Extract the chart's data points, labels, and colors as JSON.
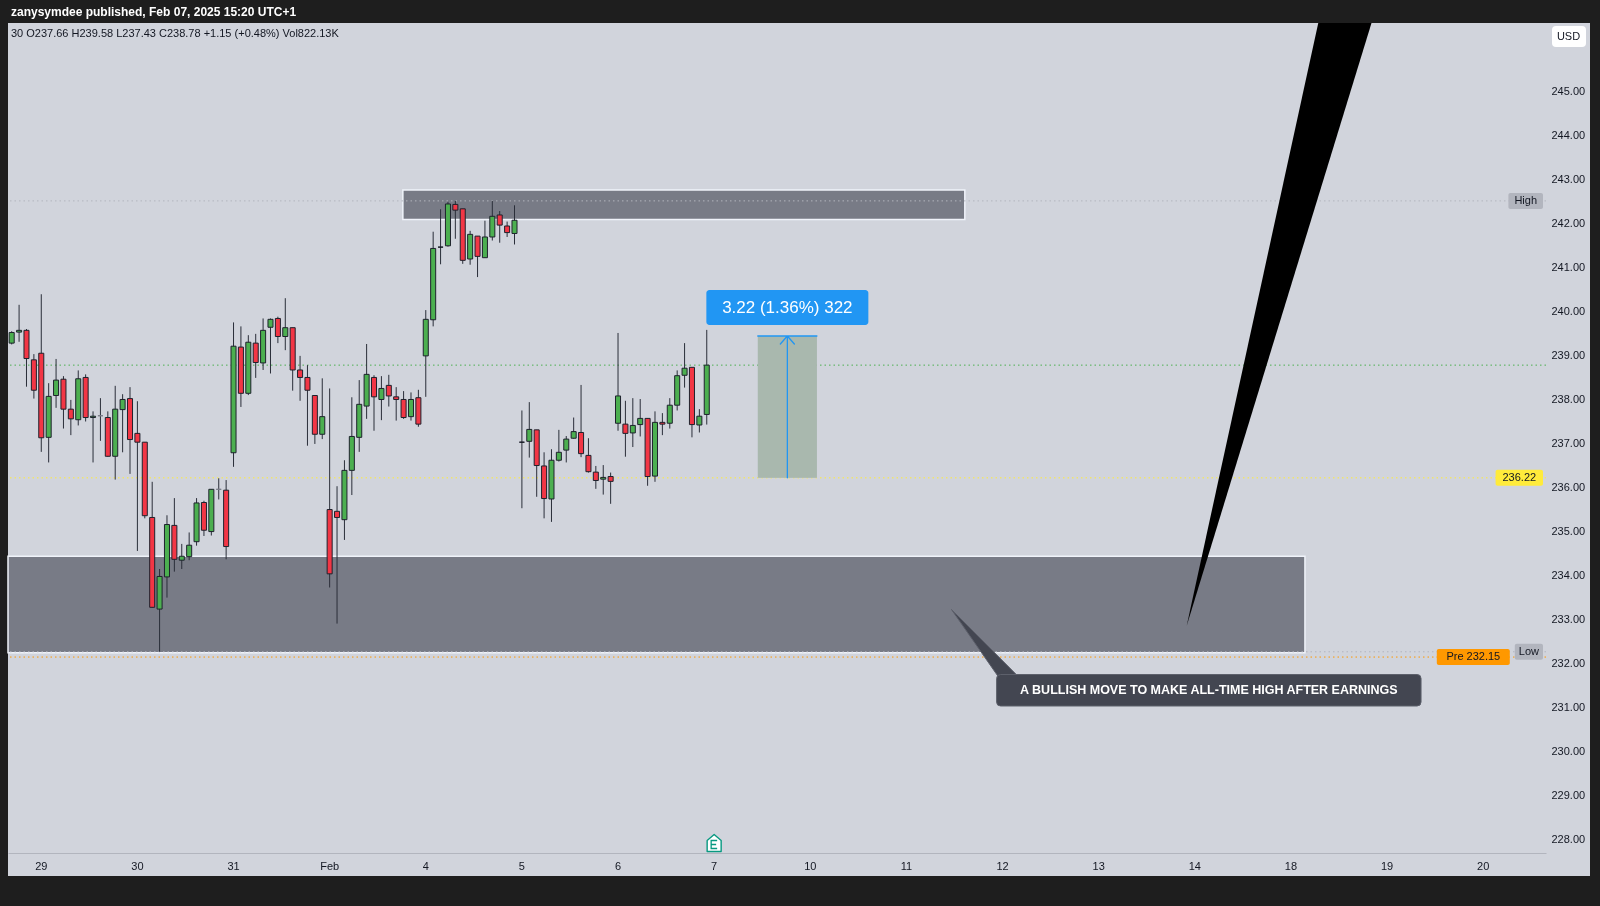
{
  "chart_data": {
    "type": "candlestick",
    "title": "zanysymdee published, Feb 07, 2025 15:20 UTC+1",
    "subtitle": "30 O237.66 H239.58 L237.43 C238.78 +1.15 (+0.48%) Vol822.13K",
    "ylabel": "USD",
    "categories": [
      null,
      null,
      null,
      null,
      "29",
      null,
      null,
      null,
      null,
      null,
      null,
      null,
      null,
      null,
      null,
      null,
      null,
      "30",
      null,
      null,
      null,
      null,
      null,
      null,
      null,
      null,
      null,
      null,
      null,
      null,
      "31",
      null,
      null,
      null,
      null,
      null,
      null,
      null,
      null,
      null,
      null,
      null,
      null,
      "Feb",
      null,
      null,
      null,
      null,
      null,
      null,
      null,
      null,
      null,
      null,
      null,
      null,
      "4",
      null,
      null,
      null,
      null,
      null,
      null,
      null,
      null,
      null,
      null,
      null,
      null,
      "5",
      null,
      null,
      null,
      null,
      null,
      null,
      null,
      null,
      null,
      null,
      null,
      null,
      "6",
      null,
      null,
      null,
      null,
      null,
      null,
      null,
      null,
      null,
      null,
      null,
      null,
      "7",
      null,
      null,
      null,
      null,
      null,
      null,
      null,
      null,
      null,
      null,
      null,
      null,
      "10",
      null,
      null,
      null,
      null,
      null,
      null,
      null,
      null,
      null,
      null,
      null,
      null,
      "11",
      null,
      null,
      null,
      null,
      null,
      null,
      null,
      null,
      null,
      null,
      null,
      null,
      "12",
      null,
      null,
      null,
      null,
      null,
      null,
      null,
      null,
      null,
      null,
      null,
      null,
      "13",
      null,
      null,
      null,
      null,
      null,
      null,
      null,
      null,
      null,
      null,
      null,
      null,
      "14",
      null,
      null,
      null,
      null,
      null,
      null,
      null,
      null,
      null,
      null,
      null,
      null,
      "18",
      null,
      null,
      null,
      null,
      null,
      null,
      null,
      null,
      null,
      null,
      null,
      null,
      "19",
      null,
      null,
      null,
      null,
      null,
      null,
      null,
      null,
      null,
      null,
      null,
      null,
      "20",
      null,
      null,
      null,
      null,
      null,
      null,
      null,
      null
    ],
    "ohlc": [
      [
        239.28,
        239.55,
        239.25,
        239.52
      ],
      [
        239.53,
        240.15,
        239.31,
        239.57
      ],
      [
        239.57,
        239.6,
        238.29,
        238.93
      ],
      [
        238.9,
        239.03,
        238.02,
        238.21
      ],
      [
        239.05,
        240.39,
        236.81,
        237.13
      ],
      [
        237.14,
        238.37,
        236.57,
        238.07
      ],
      [
        238.09,
        238.92,
        237.81,
        238.44
      ],
      [
        238.46,
        238.53,
        237.34,
        237.78
      ],
      [
        237.78,
        237.99,
        237.19,
        237.56
      ],
      [
        237.54,
        238.66,
        237.41,
        238.47
      ],
      [
        238.5,
        238.57,
        237.5,
        237.59
      ],
      [
        237.59,
        237.73,
        236.57,
        237.62
      ],
      [
        237.63,
        238.03,
        237.06,
        237.63
      ],
      [
        237.59,
        237.73,
        236.7,
        236.71
      ],
      [
        236.71,
        238.31,
        236.18,
        237.78
      ],
      [
        237.77,
        238.12,
        236.8,
        238
      ],
      [
        238.02,
        238.28,
        236.31,
        237.09
      ],
      [
        237.23,
        237.96,
        234.56,
        237.03
      ],
      [
        237.03,
        237.03,
        235.3,
        235.36
      ],
      [
        235.32,
        236.13,
        233.27,
        233.28
      ],
      [
        233.24,
        234.15,
        232.27,
        233.98
      ],
      [
        233.97,
        235.37,
        233.5,
        235.16
      ],
      [
        235.14,
        235.76,
        234.09,
        234.37
      ],
      [
        234.35,
        234.72,
        234.15,
        234.44
      ],
      [
        234.43,
        234.98,
        234.35,
        234.69
      ],
      [
        234.77,
        235.76,
        234.68,
        235.65
      ],
      [
        235.66,
        235.7,
        234.9,
        235.03
      ],
      [
        235,
        235.96,
        234.91,
        235.96
      ],
      [
        235.96,
        236.21,
        235.73,
        235.96
      ],
      [
        235.94,
        236.17,
        234.37,
        234.66
      ],
      [
        236.79,
        239.75,
        236.47,
        239.21
      ],
      [
        239.19,
        239.66,
        237.83,
        238.14
      ],
      [
        238.14,
        239.46,
        238.1,
        239.3
      ],
      [
        239.28,
        239.49,
        238.49,
        238.84
      ],
      [
        238.83,
        239.84,
        238.67,
        239.57
      ],
      [
        239.64,
        239.84,
        238.59,
        239.82
      ],
      [
        239.84,
        239.88,
        239.28,
        239.43
      ],
      [
        239.43,
        240.3,
        239.12,
        239.63
      ],
      [
        239.63,
        239.63,
        238.2,
        238.67
      ],
      [
        238.67,
        238.99,
        237.97,
        238.5
      ],
      [
        238.5,
        238.78,
        236.95,
        238.21
      ],
      [
        238.09,
        238.09,
        236.99,
        237.21
      ],
      [
        237.21,
        238.48,
        237.1,
        237.61
      ],
      [
        235.5,
        238.25,
        233.73,
        234.04
      ],
      [
        235.46,
        236.03,
        232.91,
        235.32
      ],
      [
        235.27,
        236.62,
        234.81,
        236.39
      ],
      [
        236.39,
        238.05,
        235.83,
        237.16
      ],
      [
        237.14,
        238.44,
        236.81,
        237.89
      ],
      [
        237.85,
        239.26,
        237.56,
        238.57
      ],
      [
        238.5,
        238.55,
        237.29,
        238.06
      ],
      [
        238,
        238.53,
        237.53,
        238.25
      ],
      [
        238.32,
        238.56,
        237.84,
        238.08
      ],
      [
        238.06,
        238.28,
        237.52,
        238
      ],
      [
        238,
        238.19,
        237.56,
        237.59
      ],
      [
        237.61,
        238.16,
        237.52,
        238
      ],
      [
        238.04,
        238.22,
        237.38,
        237.44
      ],
      [
        238.99,
        240.03,
        238.06,
        239.82
      ],
      [
        239.81,
        241.81,
        239.66,
        241.43
      ],
      [
        241.46,
        242.32,
        241.07,
        241.46
      ],
      [
        241.49,
        242.49,
        241.47,
        242.44
      ],
      [
        242.43,
        242.51,
        241.65,
        242.3
      ],
      [
        242.33,
        242.33,
        241.08,
        241.16
      ],
      [
        241.19,
        241.83,
        241.06,
        241.75
      ],
      [
        241.71,
        241.71,
        240.78,
        241.25
      ],
      [
        241.22,
        242.06,
        241.22,
        241.69
      ],
      [
        241.69,
        242.51,
        241.61,
        242.16
      ],
      [
        242.19,
        242.28,
        241.56,
        241.96
      ],
      [
        241.94,
        242.04,
        241.69,
        241.79
      ],
      [
        241.77,
        242.41,
        241.52,
        242.07
      ],
      [
        237.03,
        237.75,
        235.53,
        237.03
      ],
      [
        237.05,
        237.94,
        236.68,
        237.32
      ],
      [
        237.31,
        237.31,
        235.79,
        236.5
      ],
      [
        236.49,
        236.8,
        235.3,
        235.75
      ],
      [
        235.74,
        236.87,
        235.22,
        236.62
      ],
      [
        236.62,
        237.31,
        236.59,
        236.8
      ],
      [
        236.85,
        237.17,
        236.57,
        237.1
      ],
      [
        237.12,
        237.59,
        237.11,
        237.27
      ],
      [
        237.25,
        238.33,
        236.69,
        236.77
      ],
      [
        236.73,
        237.12,
        236.34,
        236.36
      ],
      [
        236.35,
        236.49,
        235.97,
        236.16
      ],
      [
        236.19,
        236.51,
        235.84,
        236.23
      ],
      [
        236.25,
        236.34,
        235.63,
        236.14
      ],
      [
        237.46,
        239.51,
        237.29,
        238.08
      ],
      [
        237.44,
        237.97,
        236.7,
        237.23
      ],
      [
        237.24,
        238.03,
        236.92,
        237.41
      ],
      [
        237.43,
        238.01,
        237.16,
        237.57
      ],
      [
        237.57,
        237.57,
        236.04,
        236.25
      ],
      [
        236.26,
        237.73,
        236.13,
        237.48
      ],
      [
        237.48,
        237.69,
        237.19,
        237.44
      ],
      [
        237.46,
        238.03,
        237.34,
        237.87
      ],
      [
        237.87,
        238.66,
        237.75,
        238.54
      ],
      [
        238.55,
        239.28,
        238.27,
        238.71
      ],
      [
        238.73,
        238.73,
        237.14,
        237.43
      ],
      [
        237.42,
        237.78,
        237.25,
        237.62
      ],
      [
        237.66,
        239.58,
        237.43,
        238.78
      ],
      null,
      null,
      null,
      null,
      null,
      null,
      null,
      null,
      null,
      null,
      null,
      null,
      null,
      null,
      null,
      null,
      null,
      null,
      null,
      null,
      null,
      null,
      null,
      null,
      null,
      null,
      null,
      null,
      null,
      null,
      null,
      null,
      null,
      null,
      null,
      null,
      null,
      null,
      null,
      null,
      null,
      null,
      null,
      null,
      null,
      null,
      null,
      null,
      null,
      null,
      null,
      null,
      null,
      null,
      null,
      null,
      null,
      null,
      null,
      null,
      null,
      null,
      null,
      null,
      null,
      null,
      null,
      null,
      null,
      null,
      null,
      null,
      null,
      null,
      null,
      null,
      null,
      null,
      null,
      null,
      null,
      null,
      null,
      null,
      null,
      null,
      null,
      null,
      null,
      null,
      null,
      null,
      null,
      null,
      null,
      null,
      null,
      null,
      null,
      null,
      null,
      null,
      null,
      null,
      null,
      null,
      null,
      null,
      null,
      null,
      null,
      null,
      null
    ],
    "colors": [
      "#4caf50",
      "#4caf50",
      "#f23645",
      "#f23645",
      "#f23645",
      "#4caf50",
      "#4caf50",
      "#f23645",
      "#f23645",
      "#4caf50",
      "#f23645",
      "#4caf50",
      "#787b86",
      "#f23645",
      "#4caf50",
      "#4caf50",
      "#f23645",
      "#f23645",
      "#f23645",
      "#f23645",
      "#4caf50",
      "#4caf50",
      "#f23645",
      "#4caf50",
      "#4caf50",
      "#4caf50",
      "#f23645",
      "#4caf50",
      "#787b86",
      "#f23645",
      "#4caf50",
      "#f23645",
      "#4caf50",
      "#f23645",
      "#4caf50",
      "#4caf50",
      "#f23645",
      "#4caf50",
      "#f23645",
      "#f23645",
      "#f23645",
      "#f23645",
      "#4caf50",
      "#f23645",
      "#f23645",
      "#4caf50",
      "#4caf50",
      "#4caf50",
      "#4caf50",
      "#f23645",
      "#4caf50",
      "#f23645",
      "#f23645",
      "#f23645",
      "#4caf50",
      "#f23645",
      "#4caf50",
      "#4caf50",
      "#131722",
      "#4caf50",
      "#f23645",
      "#f23645",
      "#4caf50",
      "#f23645",
      "#4caf50",
      "#4caf50",
      "#f23645",
      "#f23645",
      "#4caf50",
      "#131722",
      "#4caf50",
      "#f23645",
      "#f23645",
      "#4caf50",
      "#4caf50",
      "#4caf50",
      "#4caf50",
      "#f23645",
      "#f23645",
      "#f23645",
      "#4caf50",
      "#f23645",
      "#4caf50",
      "#f23645",
      "#4caf50",
      "#4caf50",
      "#f23645",
      "#4caf50",
      "#f23645",
      "#4caf50",
      "#4caf50",
      "#4caf50",
      "#f23645",
      "#4caf50",
      "#4caf50",
      null,
      null,
      null,
      null,
      null,
      null,
      null,
      null,
      null,
      null,
      null,
      null,
      null,
      null,
      null,
      null,
      null,
      null,
      null,
      null,
      null,
      null,
      null,
      null,
      null,
      null,
      null,
      null,
      null,
      null,
      null,
      null,
      null,
      null,
      null,
      null,
      null,
      null,
      null,
      null,
      null,
      null,
      null,
      null,
      null,
      null,
      null,
      null,
      null,
      null,
      null,
      null,
      null,
      null,
      null,
      null,
      null,
      null,
      null,
      null,
      null,
      null,
      null,
      null,
      null,
      null,
      null,
      null,
      null,
      null,
      null,
      null,
      null,
      null,
      null,
      null,
      null,
      null,
      null,
      null,
      null,
      null,
      null,
      null,
      null,
      null,
      null,
      null,
      null,
      null,
      null,
      null,
      null,
      null,
      null,
      null,
      null,
      null,
      null,
      null,
      null,
      null,
      null,
      null,
      null,
      null,
      null,
      null,
      null,
      null,
      null,
      null,
      null
    ],
    "ylim": [
      227.7,
      246.55
    ],
    "yticks": [
      {
        "value": 228,
        "label": "228.00"
      },
      {
        "value": 229,
        "label": "229.00"
      },
      {
        "value": 230,
        "label": "230.00"
      },
      {
        "value": 231,
        "label": "231.00"
      },
      {
        "value": 232,
        "label": "232.00"
      },
      {
        "value": 233,
        "label": "233.00"
      },
      {
        "value": 234,
        "label": "234.00"
      },
      {
        "value": 235,
        "label": "235.00"
      },
      {
        "value": 236,
        "label": "236.00"
      },
      {
        "value": 237,
        "label": "237.00"
      },
      {
        "value": 238,
        "label": "238.00"
      },
      {
        "value": 239,
        "label": "239.00"
      },
      {
        "value": 240,
        "label": "240.00"
      },
      {
        "value": 241,
        "label": "241.00"
      },
      {
        "value": 242,
        "label": "242.00"
      },
      {
        "value": 243,
        "label": "243.00"
      },
      {
        "value": 244,
        "label": "244.00"
      },
      {
        "value": 245,
        "label": "245.00"
      }
    ],
    "ref_lines": [
      {
        "axis": "y",
        "value": 242.51,
        "label": "High",
        "color": "#b2b5be",
        "line_style": "dotted"
      },
      {
        "axis": "y",
        "value": 238.78,
        "color": "#4caf50",
        "line_style": "dotted"
      },
      {
        "axis": "y",
        "value": 236.22,
        "label": "236.22",
        "color": "#ffeb3b",
        "line_style": "dotted"
      },
      {
        "axis": "y",
        "value": 232.27,
        "label": "Low",
        "color": "#b2b5be",
        "line_style": "dotted"
      },
      {
        "axis": "y",
        "value": 232.15,
        "label": "Pre 232.15",
        "color": "#ff9800",
        "line_style": "dotted"
      }
    ],
    "bands": [
      {
        "axis": "y",
        "from": 242.09,
        "to": 242.76,
        "color": "#787b86"
      },
      {
        "axis": "y",
        "from": 232.25,
        "to": 234.44,
        "color": "#787b86"
      }
    ],
    "annotations": [
      "A BULLISH MOVE TO MAKE ALL-TIME HIGH AFTER EARNINGS",
      {
        "text": "3.22 (1.36%) 322",
        "y": 236.22
      }
    ]
  }
}
